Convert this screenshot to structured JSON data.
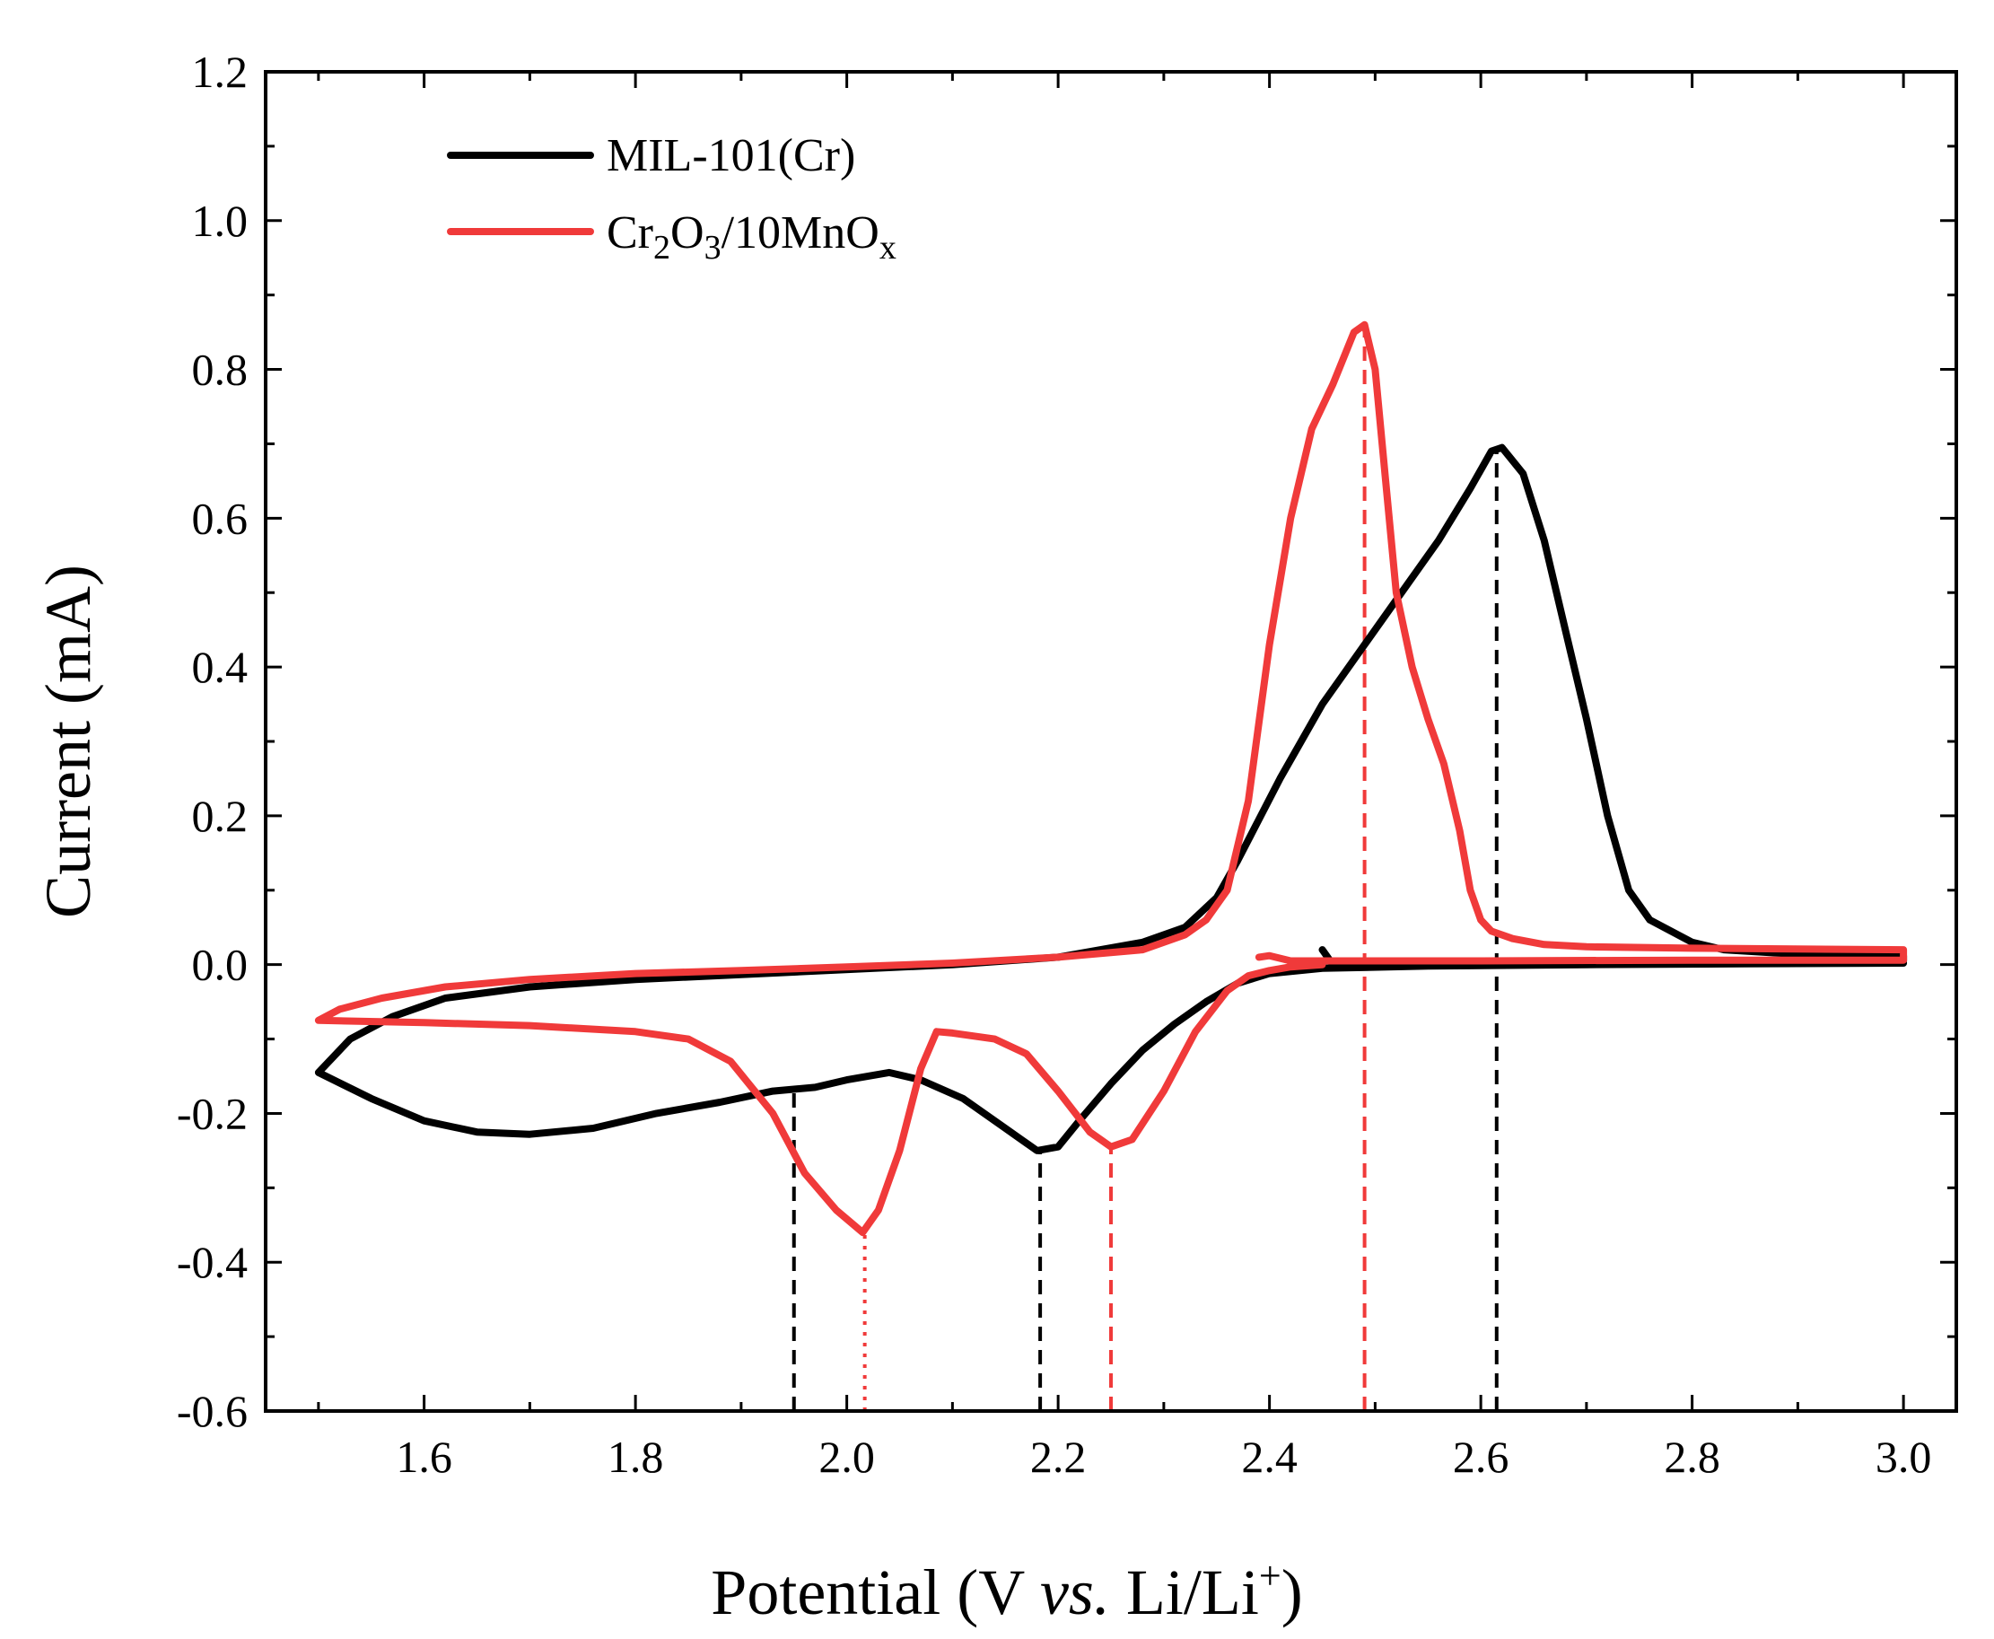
{
  "chart_data": {
    "type": "line",
    "title": "",
    "xlabel": {
      "main": "Potential (V ",
      "italic": "vs.",
      "tail": " Li/Li",
      "sup": "+",
      "close": ")"
    },
    "ylabel": "Current (mA)",
    "xlim": [
      1.45,
      3.05
    ],
    "ylim": [
      -0.6,
      1.2
    ],
    "x_ticks": [
      1.6,
      1.8,
      2.0,
      2.2,
      2.4,
      2.6,
      2.8,
      3.0
    ],
    "x_tick_labels": [
      "1.6",
      "1.8",
      "2.0",
      "2.2",
      "2.4",
      "2.6",
      "2.8",
      "3.0"
    ],
    "y_ticks": [
      -0.6,
      -0.4,
      -0.2,
      0.0,
      0.2,
      0.4,
      0.6,
      0.8,
      1.0,
      1.2
    ],
    "y_tick_labels": [
      "-0.6",
      "-0.4",
      "-0.2",
      "0.0",
      "0.2",
      "0.4",
      "0.6",
      "0.8",
      "1.0",
      "1.2"
    ],
    "legend": {
      "position": "top-left",
      "entries": [
        {
          "series": 0,
          "label": "MIL-101(Cr)"
        },
        {
          "series": 1,
          "parts": [
            {
              "t": "Cr"
            },
            {
              "t": "2",
              "sub": true
            },
            {
              "t": "O"
            },
            {
              "t": "3",
              "sub": true
            },
            {
              "t": "/10MnO"
            },
            {
              "t": "x",
              "sub": true
            }
          ],
          "label": "Cr2O3/10MnOx"
        }
      ]
    },
    "series": [
      {
        "name": "MIL-101(Cr)",
        "color": "#000000",
        "points": [
          [
            2.45,
            0.02
          ],
          [
            2.46,
            0.0
          ],
          [
            2.6,
            0.0
          ],
          [
            2.8,
            0.002
          ],
          [
            3.0,
            0.005
          ],
          [
            3.0,
            0.012
          ],
          [
            2.9,
            0.014
          ],
          [
            2.83,
            0.02
          ],
          [
            2.8,
            0.03
          ],
          [
            2.76,
            0.06
          ],
          [
            2.74,
            0.1
          ],
          [
            2.72,
            0.2
          ],
          [
            2.7,
            0.33
          ],
          [
            2.68,
            0.45
          ],
          [
            2.66,
            0.57
          ],
          [
            2.64,
            0.66
          ],
          [
            2.62,
            0.695
          ],
          [
            2.61,
            0.69
          ],
          [
            2.59,
            0.64
          ],
          [
            2.56,
            0.57
          ],
          [
            2.52,
            0.49
          ],
          [
            2.49,
            0.43
          ],
          [
            2.45,
            0.35
          ],
          [
            2.41,
            0.25
          ],
          [
            2.37,
            0.14
          ],
          [
            2.35,
            0.09
          ],
          [
            2.32,
            0.05
          ],
          [
            2.28,
            0.03
          ],
          [
            2.2,
            0.01
          ],
          [
            2.1,
            0.0
          ],
          [
            1.95,
            -0.01
          ],
          [
            1.8,
            -0.02
          ],
          [
            1.7,
            -0.03
          ],
          [
            1.62,
            -0.045
          ],
          [
            1.57,
            -0.07
          ],
          [
            1.53,
            -0.1
          ],
          [
            1.5,
            -0.145
          ],
          [
            1.55,
            -0.18
          ],
          [
            1.6,
            -0.21
          ],
          [
            1.65,
            -0.225
          ],
          [
            1.7,
            -0.228
          ],
          [
            1.76,
            -0.22
          ],
          [
            1.82,
            -0.2
          ],
          [
            1.88,
            -0.185
          ],
          [
            1.93,
            -0.17
          ],
          [
            1.97,
            -0.165
          ],
          [
            2.0,
            -0.155
          ],
          [
            2.04,
            -0.145
          ],
          [
            2.07,
            -0.155
          ],
          [
            2.11,
            -0.18
          ],
          [
            2.15,
            -0.22
          ],
          [
            2.18,
            -0.25
          ],
          [
            2.2,
            -0.245
          ],
          [
            2.22,
            -0.21
          ],
          [
            2.25,
            -0.16
          ],
          [
            2.28,
            -0.115
          ],
          [
            2.31,
            -0.08
          ],
          [
            2.34,
            -0.05
          ],
          [
            2.37,
            -0.025
          ],
          [
            2.4,
            -0.012
          ],
          [
            2.45,
            -0.005
          ],
          [
            2.55,
            -0.002
          ],
          [
            2.7,
            0.0
          ],
          [
            2.85,
            0.001
          ],
          [
            3.0,
            0.002
          ]
        ]
      },
      {
        "name": "Cr2O3/10MnOx",
        "color": "#f03a3a",
        "points": [
          [
            2.39,
            0.01
          ],
          [
            2.4,
            0.012
          ],
          [
            2.42,
            0.005
          ],
          [
            2.6,
            0.005
          ],
          [
            2.8,
            0.006
          ],
          [
            3.0,
            0.006
          ],
          [
            3.0,
            0.02
          ],
          [
            2.8,
            0.022
          ],
          [
            2.7,
            0.024
          ],
          [
            2.66,
            0.027
          ],
          [
            2.63,
            0.035
          ],
          [
            2.61,
            0.045
          ],
          [
            2.6,
            0.06
          ],
          [
            2.59,
            0.1
          ],
          [
            2.58,
            0.18
          ],
          [
            2.565,
            0.27
          ],
          [
            2.55,
            0.33
          ],
          [
            2.535,
            0.4
          ],
          [
            2.52,
            0.5
          ],
          [
            2.51,
            0.65
          ],
          [
            2.5,
            0.8
          ],
          [
            2.49,
            0.86
          ],
          [
            2.48,
            0.85
          ],
          [
            2.46,
            0.78
          ],
          [
            2.44,
            0.72
          ],
          [
            2.42,
            0.6
          ],
          [
            2.4,
            0.43
          ],
          [
            2.38,
            0.22
          ],
          [
            2.36,
            0.1
          ],
          [
            2.34,
            0.06
          ],
          [
            2.32,
            0.04
          ],
          [
            2.28,
            0.02
          ],
          [
            2.2,
            0.01
          ],
          [
            2.1,
            0.002
          ],
          [
            2.0,
            -0.003
          ],
          [
            1.9,
            -0.008
          ],
          [
            1.8,
            -0.012
          ],
          [
            1.7,
            -0.02
          ],
          [
            1.62,
            -0.03
          ],
          [
            1.56,
            -0.045
          ],
          [
            1.52,
            -0.06
          ],
          [
            1.5,
            -0.075
          ],
          [
            1.6,
            -0.078
          ],
          [
            1.7,
            -0.082
          ],
          [
            1.8,
            -0.09
          ],
          [
            1.85,
            -0.1
          ],
          [
            1.89,
            -0.13
          ],
          [
            1.93,
            -0.2
          ],
          [
            1.96,
            -0.28
          ],
          [
            1.99,
            -0.33
          ],
          [
            2.015,
            -0.36
          ],
          [
            2.03,
            -0.33
          ],
          [
            2.05,
            -0.25
          ],
          [
            2.07,
            -0.14
          ],
          [
            2.085,
            -0.09
          ],
          [
            2.1,
            -0.092
          ],
          [
            2.14,
            -0.1
          ],
          [
            2.17,
            -0.12
          ],
          [
            2.2,
            -0.17
          ],
          [
            2.23,
            -0.225
          ],
          [
            2.25,
            -0.245
          ],
          [
            2.27,
            -0.235
          ],
          [
            2.3,
            -0.17
          ],
          [
            2.33,
            -0.09
          ],
          [
            2.36,
            -0.035
          ],
          [
            2.38,
            -0.015
          ],
          [
            2.4,
            -0.008
          ],
          [
            2.42,
            -0.003
          ],
          [
            2.45,
            0.0
          ]
        ]
      }
    ],
    "annotations": [
      {
        "type": "vline",
        "x": 2.615,
        "y_from": -0.6,
        "y_to": 0.69,
        "color": "#000000",
        "style": "dashed"
      },
      {
        "type": "vline",
        "x": 2.49,
        "y_from": -0.6,
        "y_to": 0.86,
        "color": "#f03a3a",
        "style": "dashed"
      },
      {
        "type": "vline",
        "x": 1.95,
        "y_from": -0.6,
        "y_to": -0.165,
        "color": "#000000",
        "style": "dashed"
      },
      {
        "type": "vline",
        "x": 2.183,
        "y_from": -0.6,
        "y_to": -0.25,
        "color": "#000000",
        "style": "dashed"
      },
      {
        "type": "vline",
        "x": 2.017,
        "y_from": -0.6,
        "y_to": -0.36,
        "color": "#f03a3a",
        "style": "dotted"
      },
      {
        "type": "vline",
        "x": 2.25,
        "y_from": -0.6,
        "y_to": -0.245,
        "color": "#f03a3a",
        "style": "dashed"
      }
    ]
  }
}
